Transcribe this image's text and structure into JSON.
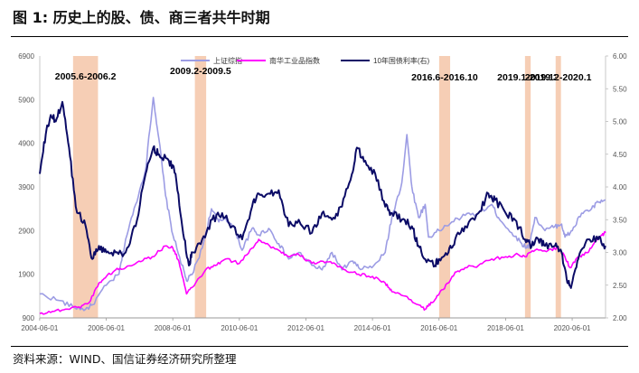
{
  "figure": {
    "title": "图 1:  历史上的股、债、商三者共牛时期",
    "source": "资料来源：WIND、国信证券经济研究所整理"
  },
  "chart_data": {
    "type": "line",
    "left_axis": {
      "ylim": [
        900,
        6900
      ],
      "ticks": [
        "900",
        "1900",
        "2900",
        "3900",
        "4900",
        "5900",
        "6900"
      ]
    },
    "right_axis": {
      "ylim": [
        2.0,
        6.0
      ],
      "ticks": [
        "2.00",
        "2.50",
        "3.00",
        "3.50",
        "4.00",
        "4.50",
        "5.00",
        "5.50",
        "6.00"
      ]
    },
    "x_axis": {
      "range": [
        2004.42,
        2021.42
      ],
      "ticks": [
        "2004-06-01",
        "2006-06-01",
        "2008-06-01",
        "2010-06-01",
        "2012-06-01",
        "2014-06-01",
        "2016-06-01",
        "2018-06-01",
        "2020-06-01"
      ]
    },
    "legend_position": "top",
    "series": [
      {
        "name": "上证综指",
        "axis": "left",
        "color": "#9c9ce4",
        "points": [
          [
            2004.42,
            1450
          ],
          [
            2005.0,
            1300
          ],
          [
            2005.42,
            1150
          ],
          [
            2005.8,
            1100
          ],
          [
            2006.0,
            1200
          ],
          [
            2006.42,
            1650
          ],
          [
            2006.8,
            1900
          ],
          [
            2007.0,
            2700
          ],
          [
            2007.3,
            3500
          ],
          [
            2007.6,
            4300
          ],
          [
            2007.83,
            5950
          ],
          [
            2008.0,
            5000
          ],
          [
            2008.2,
            3700
          ],
          [
            2008.42,
            2800
          ],
          [
            2008.7,
            2100
          ],
          [
            2008.83,
            1750
          ],
          [
            2009.0,
            1900
          ],
          [
            2009.3,
            2500
          ],
          [
            2009.58,
            3400
          ],
          [
            2009.8,
            3100
          ],
          [
            2010.0,
            3200
          ],
          [
            2010.3,
            2900
          ],
          [
            2010.5,
            2450
          ],
          [
            2010.8,
            2950
          ],
          [
            2011.0,
            2800
          ],
          [
            2011.3,
            2950
          ],
          [
            2011.6,
            2600
          ],
          [
            2011.9,
            2250
          ],
          [
            2012.2,
            2400
          ],
          [
            2012.6,
            2100
          ],
          [
            2012.9,
            2000
          ],
          [
            2013.2,
            2400
          ],
          [
            2013.5,
            2000
          ],
          [
            2013.8,
            2200
          ],
          [
            2014.0,
            2050
          ],
          [
            2014.4,
            2050
          ],
          [
            2014.8,
            2400
          ],
          [
            2015.0,
            3200
          ],
          [
            2015.3,
            4000
          ],
          [
            2015.45,
            5100
          ],
          [
            2015.6,
            3900
          ],
          [
            2015.8,
            3200
          ],
          [
            2016.0,
            3500
          ],
          [
            2016.1,
            2750
          ],
          [
            2016.42,
            2900
          ],
          [
            2016.8,
            3100
          ],
          [
            2017.2,
            3250
          ],
          [
            2017.6,
            3300
          ],
          [
            2018.0,
            3500
          ],
          [
            2018.2,
            3200
          ],
          [
            2018.6,
            2850
          ],
          [
            2018.9,
            2600
          ],
          [
            2019.1,
            2500
          ],
          [
            2019.3,
            3200
          ],
          [
            2019.6,
            2900
          ],
          [
            2019.9,
            3000
          ],
          [
            2020.1,
            3050
          ],
          [
            2020.2,
            2750
          ],
          [
            2020.42,
            2900
          ],
          [
            2020.7,
            3300
          ],
          [
            2021.0,
            3400
          ],
          [
            2021.2,
            3550
          ],
          [
            2021.42,
            3600
          ]
        ]
      },
      {
        "name": "南华工业品指数",
        "axis": "left",
        "color": "#ff00ff",
        "points": [
          [
            2004.42,
            1000
          ],
          [
            2004.8,
            1050
          ],
          [
            2005.2,
            1100
          ],
          [
            2005.6,
            1150
          ],
          [
            2005.9,
            1250
          ],
          [
            2006.2,
            1700
          ],
          [
            2006.42,
            1850
          ],
          [
            2006.7,
            2000
          ],
          [
            2007.0,
            2050
          ],
          [
            2007.4,
            2200
          ],
          [
            2007.8,
            2300
          ],
          [
            2008.2,
            2550
          ],
          [
            2008.42,
            2500
          ],
          [
            2008.6,
            2200
          ],
          [
            2008.83,
            1450
          ],
          [
            2009.0,
            1600
          ],
          [
            2009.4,
            2000
          ],
          [
            2009.7,
            2100
          ],
          [
            2010.0,
            2250
          ],
          [
            2010.42,
            2150
          ],
          [
            2010.8,
            2500
          ],
          [
            2011.0,
            2700
          ],
          [
            2011.2,
            2600
          ],
          [
            2011.6,
            2450
          ],
          [
            2011.9,
            2300
          ],
          [
            2012.2,
            2350
          ],
          [
            2012.6,
            2150
          ],
          [
            2012.9,
            2200
          ],
          [
            2013.2,
            2150
          ],
          [
            2013.6,
            2000
          ],
          [
            2014.0,
            1900
          ],
          [
            2014.42,
            1850
          ],
          [
            2014.8,
            1700
          ],
          [
            2015.0,
            1500
          ],
          [
            2015.4,
            1400
          ],
          [
            2015.8,
            1200
          ],
          [
            2016.0,
            1100
          ],
          [
            2016.2,
            1250
          ],
          [
            2016.42,
            1450
          ],
          [
            2016.7,
            1700
          ],
          [
            2016.9,
            1950
          ],
          [
            2017.2,
            2050
          ],
          [
            2017.6,
            2100
          ],
          [
            2018.0,
            2250
          ],
          [
            2018.42,
            2300
          ],
          [
            2018.8,
            2350
          ],
          [
            2019.0,
            2300
          ],
          [
            2019.3,
            2450
          ],
          [
            2019.7,
            2450
          ],
          [
            2020.0,
            2500
          ],
          [
            2020.2,
            2300
          ],
          [
            2020.35,
            2050
          ],
          [
            2020.6,
            2300
          ],
          [
            2020.9,
            2400
          ],
          [
            2021.1,
            2650
          ],
          [
            2021.3,
            2800
          ],
          [
            2021.42,
            2850
          ]
        ]
      },
      {
        "name": "10年国债利率(右)",
        "axis": "right",
        "color": "#0b0b66",
        "points": [
          [
            2004.42,
            4.2
          ],
          [
            2004.6,
            4.8
          ],
          [
            2004.75,
            5.1
          ],
          [
            2004.9,
            5.0
          ],
          [
            2005.1,
            5.3
          ],
          [
            2005.3,
            4.6
          ],
          [
            2005.5,
            3.7
          ],
          [
            2005.8,
            3.4
          ],
          [
            2006.0,
            2.9
          ],
          [
            2006.2,
            3.1
          ],
          [
            2006.42,
            3.0
          ],
          [
            2006.7,
            3.0
          ],
          [
            2007.0,
            3.0
          ],
          [
            2007.3,
            3.4
          ],
          [
            2007.6,
            4.2
          ],
          [
            2007.83,
            4.6
          ],
          [
            2008.0,
            4.5
          ],
          [
            2008.3,
            4.4
          ],
          [
            2008.5,
            4.2
          ],
          [
            2008.7,
            3.4
          ],
          [
            2008.9,
            2.8
          ],
          [
            2009.0,
            3.0
          ],
          [
            2009.3,
            3.2
          ],
          [
            2009.6,
            3.5
          ],
          [
            2009.9,
            3.6
          ],
          [
            2010.2,
            3.4
          ],
          [
            2010.5,
            3.2
          ],
          [
            2010.8,
            3.7
          ],
          [
            2011.0,
            3.9
          ],
          [
            2011.3,
            3.9
          ],
          [
            2011.6,
            3.95
          ],
          [
            2011.9,
            3.4
          ],
          [
            2012.2,
            3.5
          ],
          [
            2012.6,
            3.3
          ],
          [
            2012.9,
            3.6
          ],
          [
            2013.2,
            3.5
          ],
          [
            2013.5,
            3.7
          ],
          [
            2013.8,
            4.2
          ],
          [
            2013.95,
            4.6
          ],
          [
            2014.2,
            4.4
          ],
          [
            2014.5,
            4.2
          ],
          [
            2014.8,
            3.7
          ],
          [
            2015.0,
            3.6
          ],
          [
            2015.3,
            3.5
          ],
          [
            2015.6,
            3.4
          ],
          [
            2015.8,
            3.1
          ],
          [
            2016.0,
            2.9
          ],
          [
            2016.3,
            2.8
          ],
          [
            2016.42,
            2.9
          ],
          [
            2016.7,
            3.0
          ],
          [
            2016.9,
            3.2
          ],
          [
            2017.2,
            3.4
          ],
          [
            2017.6,
            3.6
          ],
          [
            2017.9,
            3.9
          ],
          [
            2018.1,
            3.8
          ],
          [
            2018.42,
            3.6
          ],
          [
            2018.7,
            3.5
          ],
          [
            2019.0,
            3.2
          ],
          [
            2019.2,
            3.1
          ],
          [
            2019.4,
            3.2
          ],
          [
            2019.6,
            3.1
          ],
          [
            2019.9,
            3.1
          ],
          [
            2020.1,
            3.0
          ],
          [
            2020.25,
            2.6
          ],
          [
            2020.4,
            2.5
          ],
          [
            2020.6,
            2.9
          ],
          [
            2020.9,
            3.2
          ],
          [
            2021.2,
            3.2
          ],
          [
            2021.42,
            3.1
          ]
        ]
      }
    ],
    "highlight_periods": [
      {
        "label": "2005.6-2006.2",
        "start": 2005.42,
        "end": 2006.17
      },
      {
        "label": "2009.2-2009.5",
        "start": 2009.08,
        "end": 2009.42
      },
      {
        "label": "2016.6-2016.10",
        "start": 2016.42,
        "end": 2016.75
      },
      {
        "label": "2019.1-2019.3",
        "start": 2019.0,
        "end": 2019.17
      },
      {
        "label": "2019.12-2020.1",
        "start": 2019.92,
        "end": 2020.08
      }
    ],
    "highlight_color": "#f5c9ad"
  }
}
